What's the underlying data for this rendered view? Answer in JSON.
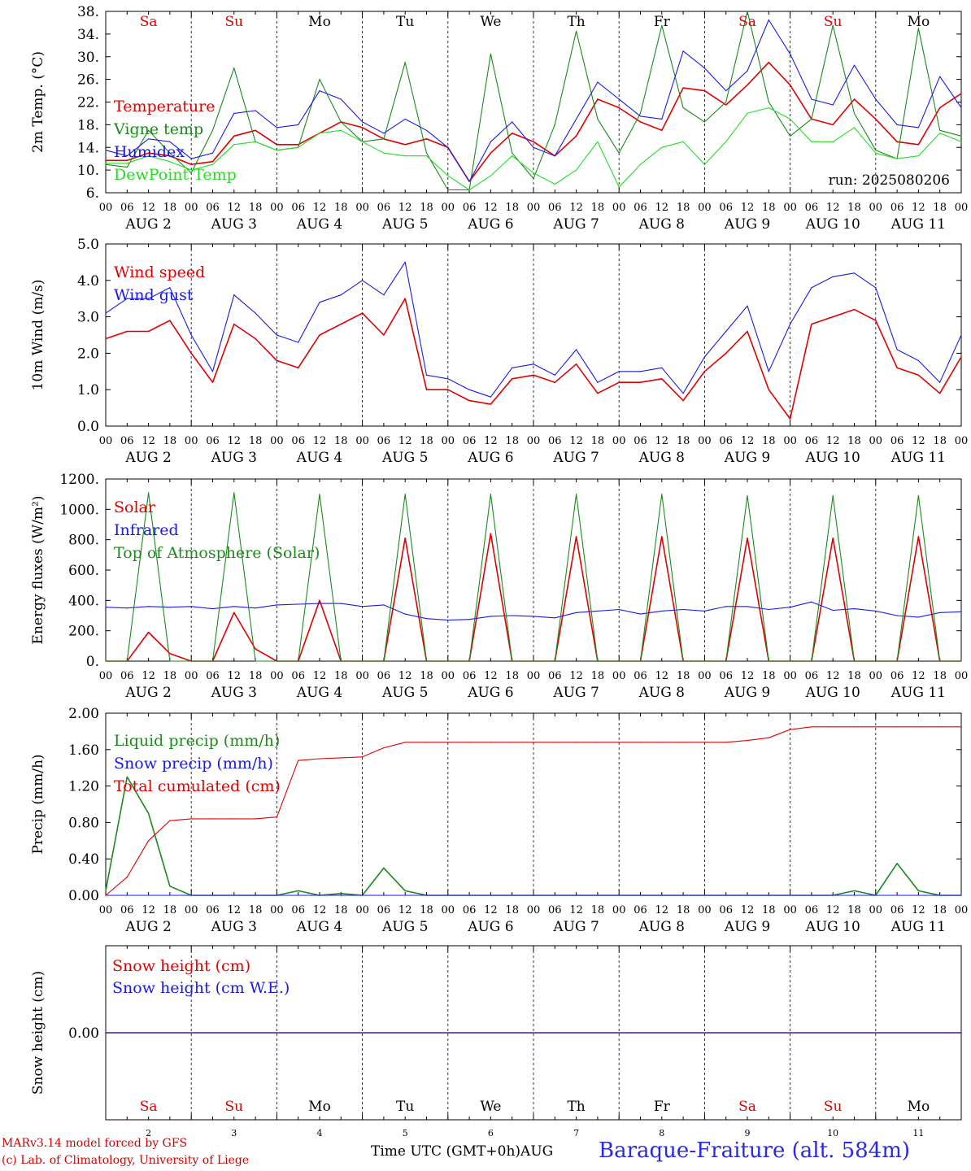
{
  "run_label": "run: 2025080206",
  "day_names": [
    {
      "label": "Sa",
      "color": "#e00000"
    },
    {
      "label": "Su",
      "color": "#e00000"
    },
    {
      "label": "Mo",
      "color": "#000000"
    },
    {
      "label": "Tu",
      "color": "#000000"
    },
    {
      "label": "We",
      "color": "#000000"
    },
    {
      "label": "Th",
      "color": "#000000"
    },
    {
      "label": "Fr",
      "color": "#000000"
    },
    {
      "label": "Sa",
      "color": "#e00000"
    },
    {
      "label": "Su",
      "color": "#e00000"
    },
    {
      "label": "Mo",
      "color": "#000000"
    }
  ],
  "date_labels": [
    "AUG  2",
    "AUG  3",
    "AUG  4",
    "AUG  5",
    "AUG  6",
    "AUG  7",
    "AUG  8",
    "AUG  9",
    "AUG 10",
    "AUG 11"
  ],
  "bottom_day_numbers": [
    "2",
    "3",
    "4",
    "5",
    "6",
    "7",
    "8",
    "9",
    "10",
    "11"
  ],
  "hour_ticks": [
    "00",
    "06",
    "12",
    "18"
  ],
  "hour_tick_final": "00",
  "colors": {
    "red": "#e00000",
    "green": "#1a8a1a",
    "blue": "#1a1ae6",
    "lightgreen": "#22dd22"
  },
  "footer": {
    "model": "MARv3.14 model forced by GFS",
    "credit": "(c) Lab. of Climatology, University of Liege",
    "time_axis": "Time UTC (GMT+0h)",
    "month": "AUG",
    "station": "Baraque-Fraiture (alt. 584m)"
  },
  "chart_data": [
    {
      "type": "line",
      "ylabel": "2m Temp. (°C)",
      "ylim": [
        6,
        38
      ],
      "yticks": [
        "6.",
        "10.",
        "14.",
        "18.",
        "22.",
        "26.",
        "30.",
        "34.",
        "38."
      ],
      "ytick_values": [
        6,
        10,
        14,
        18,
        22,
        26,
        30,
        34,
        38
      ],
      "x_unit": "hours since Aug 2 00 UTC",
      "x": [
        0,
        6,
        12,
        18,
        24,
        30,
        36,
        42,
        48,
        54,
        60,
        66,
        72,
        78,
        84,
        90,
        96,
        102,
        108,
        114,
        120,
        126,
        132,
        138,
        144,
        150,
        156,
        162,
        168,
        174,
        180,
        186,
        192,
        198,
        204,
        210,
        216,
        222,
        228,
        234,
        240
      ],
      "series": [
        {
          "name": "Temperature",
          "color": "#e00000",
          "values": [
            11.7,
            11.7,
            13.0,
            12.5,
            11.0,
            11.5,
            16.0,
            17.0,
            14.5,
            14.5,
            16.5,
            18.5,
            17.5,
            15.5,
            14.5,
            15.5,
            14.0,
            8.0,
            13.0,
            16.5,
            15.0,
            12.5,
            16.0,
            22.5,
            21.0,
            18.5,
            17.0,
            24.5,
            24.0,
            21.5,
            25.0,
            29.0,
            25.0,
            19.0,
            18.0,
            22.5,
            19.0,
            15.0,
            14.5,
            21.0,
            23.5
          ]
        },
        {
          "name": "Vigne temp",
          "color": "#1a8a1a",
          "values": [
            11.0,
            10.5,
            17.0,
            13.0,
            9.5,
            17.0,
            28.0,
            15.0,
            13.5,
            14.0,
            26.0,
            18.5,
            15.0,
            15.5,
            29.0,
            13.0,
            6.5,
            6.5,
            30.5,
            13.0,
            8.5,
            18.0,
            34.5,
            19.0,
            13.0,
            20.0,
            35.5,
            21.0,
            18.5,
            22.0,
            38.0,
            22.0,
            16.0,
            19.0,
            35.5,
            20.0,
            13.5,
            12.0,
            35.0,
            17.0,
            16.0
          ]
        },
        {
          "name": "Humidex",
          "color": "#1a1ae6",
          "values": [
            13.5,
            12.5,
            15.5,
            15.0,
            12.0,
            13.0,
            20.0,
            20.5,
            17.5,
            18.0,
            24.0,
            22.5,
            18.5,
            16.5,
            19.0,
            17.0,
            14.0,
            8.0,
            15.0,
            18.5,
            14.0,
            12.5,
            19.0,
            25.5,
            22.5,
            19.5,
            19.0,
            31.0,
            28.0,
            24.0,
            27.5,
            36.5,
            30.5,
            22.5,
            21.5,
            28.5,
            22.5,
            18.0,
            17.5,
            26.5,
            21.0
          ]
        },
        {
          "name": "DewPoint Temp",
          "color": "#22dd22",
          "values": [
            11.2,
            11.2,
            12.5,
            11.5,
            10.0,
            11.0,
            14.5,
            15.0,
            13.5,
            14.0,
            16.5,
            17.0,
            15.0,
            13.0,
            12.5,
            12.5,
            9.0,
            6.5,
            9.0,
            12.5,
            9.5,
            7.5,
            10.0,
            15.0,
            7.0,
            11.0,
            14.0,
            15.0,
            11.0,
            15.0,
            20.0,
            21.0,
            19.0,
            15.0,
            15.0,
            17.5,
            13.0,
            12.0,
            12.5,
            16.5,
            15.0
          ]
        }
      ]
    },
    {
      "type": "line",
      "ylabel": "10m Wind (m/s)",
      "ylim": [
        0,
        5
      ],
      "yticks": [
        "0.0",
        "1.0",
        "2.0",
        "3.0",
        "4.0",
        "5.0"
      ],
      "ytick_values": [
        0,
        1,
        2,
        3,
        4,
        5
      ],
      "x_unit": "hours since Aug 2 00 UTC",
      "x": [
        0,
        6,
        12,
        18,
        24,
        30,
        36,
        42,
        48,
        54,
        60,
        66,
        72,
        78,
        84,
        90,
        96,
        102,
        108,
        114,
        120,
        126,
        132,
        138,
        144,
        150,
        156,
        162,
        168,
        174,
        180,
        186,
        192,
        198,
        204,
        210,
        216,
        222,
        228,
        234,
        240
      ],
      "series": [
        {
          "name": "Wind speed",
          "color": "#e00000",
          "values": [
            2.4,
            2.6,
            2.6,
            2.9,
            2.0,
            1.2,
            2.8,
            2.4,
            1.8,
            1.6,
            2.5,
            2.8,
            3.1,
            2.5,
            3.5,
            1.0,
            1.0,
            0.7,
            0.6,
            1.3,
            1.4,
            1.2,
            1.7,
            0.9,
            1.2,
            1.2,
            1.3,
            0.7,
            1.5,
            2.0,
            2.6,
            1.0,
            0.2,
            2.8,
            3.0,
            3.2,
            2.9,
            1.6,
            1.4,
            0.9,
            1.9
          ]
        },
        {
          "name": "Wind gust",
          "color": "#1a1ae6",
          "values": [
            3.1,
            3.5,
            3.5,
            3.8,
            2.5,
            1.5,
            3.6,
            3.1,
            2.5,
            2.3,
            3.4,
            3.6,
            4.0,
            3.6,
            4.5,
            1.4,
            1.3,
            1.0,
            0.8,
            1.6,
            1.7,
            1.4,
            2.1,
            1.2,
            1.5,
            1.5,
            1.6,
            0.9,
            1.9,
            2.6,
            3.3,
            1.5,
            2.8,
            3.8,
            4.1,
            4.2,
            3.8,
            2.1,
            1.8,
            1.2,
            2.5
          ]
        }
      ]
    },
    {
      "type": "line",
      "ylabel": "Energy fluxes (W/m²)",
      "ylim": [
        0,
        1200
      ],
      "yticks": [
        "0.",
        "200.",
        "400.",
        "600.",
        "800.",
        "1000.",
        "1200."
      ],
      "ytick_values": [
        0,
        200,
        400,
        600,
        800,
        1000,
        1200
      ],
      "x_unit": "hours since Aug 2 00 UTC",
      "x": [
        0,
        6,
        12,
        18,
        24,
        30,
        36,
        42,
        48,
        54,
        60,
        66,
        72,
        78,
        84,
        90,
        96,
        102,
        108,
        114,
        120,
        126,
        132,
        138,
        144,
        150,
        156,
        162,
        168,
        174,
        180,
        186,
        192,
        198,
        204,
        210,
        216,
        222,
        228,
        234,
        240
      ],
      "series": [
        {
          "name": "Solar",
          "color": "#e00000",
          "values": [
            0,
            0,
            190,
            50,
            0,
            0,
            320,
            80,
            0,
            0,
            400,
            0,
            0,
            0,
            810,
            0,
            0,
            0,
            840,
            0,
            0,
            0,
            820,
            0,
            0,
            0,
            820,
            0,
            0,
            0,
            810,
            0,
            0,
            0,
            810,
            0,
            0,
            0,
            820,
            0,
            0
          ]
        },
        {
          "name": "Infrared",
          "color": "#1a1ae6",
          "values": [
            355,
            350,
            360,
            355,
            360,
            345,
            360,
            350,
            370,
            375,
            380,
            380,
            360,
            370,
            310,
            280,
            270,
            275,
            295,
            300,
            295,
            285,
            320,
            330,
            340,
            310,
            330,
            340,
            330,
            360,
            360,
            340,
            355,
            390,
            335,
            345,
            330,
            300,
            290,
            320,
            325
          ]
        },
        {
          "name": "Top of Atmosphere (Solar)",
          "color": "#1a8a1a",
          "values": [
            0,
            0,
            1110,
            0,
            0,
            0,
            1110,
            0,
            0,
            0,
            1100,
            0,
            0,
            0,
            1100,
            0,
            0,
            0,
            1100,
            0,
            0,
            0,
            1100,
            0,
            0,
            0,
            1100,
            0,
            0,
            0,
            1090,
            0,
            0,
            0,
            1090,
            0,
            0,
            0,
            1090,
            0,
            0
          ]
        }
      ]
    },
    {
      "type": "line",
      "ylabel": "Precip (mm/h)",
      "ylim": [
        0,
        2
      ],
      "yticks": [
        "0.00",
        "0.40",
        "0.80",
        "1.20",
        "1.60",
        "2.00"
      ],
      "ytick_values": [
        0,
        0.4,
        0.8,
        1.2,
        1.6,
        2.0
      ],
      "x_unit": "hours since Aug 2 00 UTC",
      "x": [
        0,
        6,
        12,
        18,
        24,
        30,
        36,
        42,
        48,
        54,
        60,
        66,
        72,
        78,
        84,
        90,
        96,
        102,
        108,
        114,
        120,
        126,
        132,
        138,
        144,
        150,
        156,
        162,
        168,
        174,
        180,
        186,
        192,
        198,
        204,
        210,
        216,
        222,
        228,
        234,
        240
      ],
      "series": [
        {
          "name": "Liquid precip (mm/h)",
          "color": "#1a8a1a",
          "values": [
            0.05,
            1.3,
            0.9,
            0.1,
            0.0,
            0.0,
            0.0,
            0.0,
            0.0,
            0.05,
            0.0,
            0.02,
            0.0,
            0.3,
            0.05,
            0.0,
            0.0,
            0.0,
            0.0,
            0.0,
            0.0,
            0.0,
            0.0,
            0.0,
            0.0,
            0.0,
            0.0,
            0.0,
            0.0,
            0.0,
            0.0,
            0.0,
            0.0,
            0.0,
            0.0,
            0.05,
            0.0,
            0.35,
            0.05,
            0.0,
            0.0
          ]
        },
        {
          "name": "Snow precip (mm/h)",
          "color": "#1a1ae6",
          "values": [
            0,
            0,
            0,
            0,
            0,
            0,
            0,
            0,
            0,
            0,
            0,
            0,
            0,
            0,
            0,
            0,
            0,
            0,
            0,
            0,
            0,
            0,
            0,
            0,
            0,
            0,
            0,
            0,
            0,
            0,
            0,
            0,
            0,
            0,
            0,
            0,
            0,
            0,
            0,
            0,
            0
          ]
        },
        {
          "name": "Total cumulated (cm)",
          "color": "#e00000",
          "values": [
            0.0,
            0.2,
            0.6,
            0.82,
            0.84,
            0.84,
            0.84,
            0.84,
            0.86,
            1.48,
            1.5,
            1.51,
            1.52,
            1.62,
            1.68,
            1.68,
            1.68,
            1.68,
            1.68,
            1.68,
            1.68,
            1.68,
            1.68,
            1.68,
            1.68,
            1.68,
            1.68,
            1.68,
            1.68,
            1.68,
            1.7,
            1.73,
            1.82,
            1.85,
            1.85,
            1.85,
            1.85,
            1.85,
            1.85,
            1.85,
            1.85
          ]
        }
      ]
    },
    {
      "type": "line",
      "ylabel": "Snow height (cm)",
      "yticks": [
        "0.00"
      ],
      "ytick_values": [
        0
      ],
      "x_unit": "hours since Aug 2 00 UTC",
      "x": [
        0,
        240
      ],
      "series": [
        {
          "name": "Snow height (cm)",
          "color": "#e00000",
          "values": [
            0,
            0
          ]
        },
        {
          "name": "Snow height (cm W.E.)",
          "color": "#1a1ae6",
          "values": [
            0,
            0
          ]
        }
      ]
    }
  ]
}
